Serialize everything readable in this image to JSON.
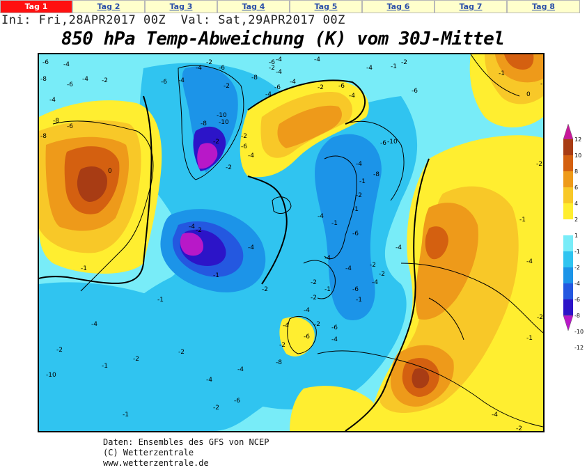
{
  "tabs": [
    {
      "label": "Tag 1",
      "active": true
    },
    {
      "label": "Tag 2",
      "active": false
    },
    {
      "label": "Tag 3",
      "active": false
    },
    {
      "label": "Tag 4",
      "active": false
    },
    {
      "label": "Tag 5",
      "active": false
    },
    {
      "label": "Tag 6",
      "active": false
    },
    {
      "label": "Tag 7",
      "active": false
    },
    {
      "label": "Tag 8",
      "active": false
    }
  ],
  "run_info": "Ini: Fri,28APR2017 00Z  Val: Sat,29APR2017 00Z",
  "title": "850 hPa Temp-Abweichung (K) vom 30J-Mittel",
  "legend": {
    "ticks": [
      "12",
      "10",
      "8",
      "6",
      "4",
      "2",
      "1",
      "-1",
      "-2",
      "-4",
      "-6",
      "-8",
      "-10",
      "-12"
    ],
    "colors": [
      "#c8189a",
      "#a83c14",
      "#d46010",
      "#ee9a1a",
      "#f8c828",
      "#ffee30",
      "#ffffff",
      "#78ecf8",
      "#30c4f0",
      "#1c94e8",
      "#2458e0",
      "#2c14c8",
      "#b818c8"
    ]
  },
  "map_labels": [
    "-6",
    "-4",
    "-8",
    "-6",
    "-4",
    "-2",
    "-4",
    "-8",
    "-8",
    "-6",
    "-6",
    "-4",
    "-2",
    "-4",
    "-6",
    "-2",
    "-8",
    "-6",
    "-4",
    "-10",
    "-8",
    "-10",
    "-2",
    "-2",
    "-6",
    "-4",
    "-2",
    "-6",
    "-4",
    "-4",
    "-2",
    "-4",
    "-4",
    "-2",
    "-6",
    "-4",
    "-4",
    "-1",
    "-2",
    "-6",
    "-10",
    "-6",
    "-8",
    "-4",
    "-1",
    "-2",
    "-1",
    "-4",
    "-1",
    "-6",
    "-4",
    "-2",
    "-4",
    "-4",
    "-6",
    "-1",
    "-4",
    "-2",
    "-2",
    "-1",
    "-2",
    "-4",
    "-2",
    "-6",
    "-4",
    "-6",
    "-4",
    "-2",
    "-8",
    "-6",
    "-2",
    "-4",
    "-4",
    "-2",
    "-1",
    "-2",
    "-1",
    "-4",
    "-1",
    "-1",
    "-2",
    "-10",
    "-4",
    "-2",
    "-4",
    "-2",
    "-1",
    "-1",
    "-1",
    "0",
    "-2",
    "-1",
    "-4",
    "-2",
    "-1",
    "-4",
    "-2",
    "0"
  ],
  "footer": {
    "line1": "Daten: Ensembles des GFS von NCEP",
    "line2": "(C) Wetterzentrale",
    "line3": "www.wetterzentrale.de"
  }
}
